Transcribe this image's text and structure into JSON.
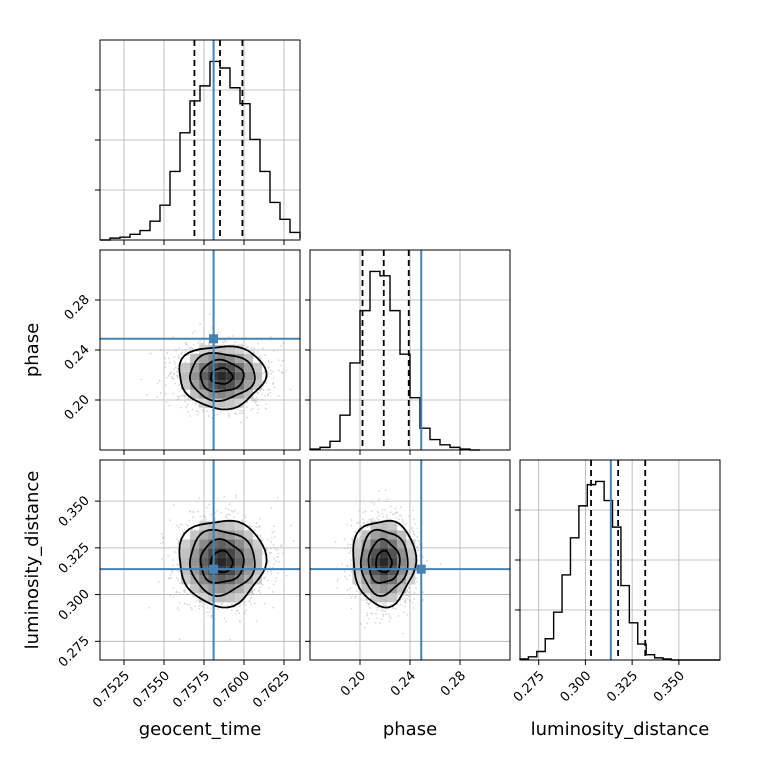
{
  "chart_data": {
    "type": "corner",
    "parameters": [
      "geocent_time",
      "phase",
      "luminosity_distance"
    ],
    "truth_color": "#4682b4",
    "hist_color": "#000000",
    "truths": {
      "geocent_time": 0.7581,
      "phase": 0.249,
      "luminosity_distance": 0.3136
    },
    "quantiles": {
      "geocent_time": [
        0.7569,
        0.7585,
        0.7599
      ],
      "phase": [
        0.202,
        0.219,
        0.239
      ],
      "luminosity_distance": [
        0.303,
        0.3175,
        0.332
      ]
    },
    "ranges": {
      "geocent_time": [
        0.751,
        0.7635
      ],
      "phase": [
        0.16,
        0.32
      ],
      "luminosity_distance": [
        0.265,
        0.372
      ]
    },
    "ticks": {
      "geocent_time": {
        "values": [
          0.7525,
          0.755,
          0.7575,
          0.76,
          0.7625
        ],
        "labels": [
          "0.7525",
          "0.7550",
          "0.7575",
          "0.7600",
          "0.7625"
        ]
      },
      "phase": {
        "values": [
          0.2,
          0.24,
          0.28
        ],
        "labels": [
          "0.20",
          "0.24",
          "0.28"
        ]
      },
      "luminosity_distance": {
        "values": [
          0.275,
          0.3,
          0.325,
          0.35
        ],
        "labels": [
          "0.275",
          "0.300",
          "0.325",
          "0.350"
        ]
      }
    },
    "histograms": {
      "geocent_time": {
        "bin_start": 0.751,
        "bin_width": 0.000625,
        "counts": [
          0,
          2,
          3,
          6,
          10,
          20,
          37,
          73,
          114,
          148,
          164,
          190,
          183,
          162,
          145,
          107,
          73,
          40,
          22,
          8,
          2
        ]
      },
      "phase": {
        "bin_start": 0.16,
        "bin_width": 0.008,
        "counts": [
          1,
          3,
          10,
          40,
          100,
          160,
          205,
          200,
          160,
          110,
          60,
          25,
          12,
          6,
          3,
          1,
          0
        ]
      },
      "luminosity_distance": {
        "bin_start": 0.265,
        "bin_width": 0.0045,
        "counts": [
          1,
          3,
          8,
          20,
          45,
          80,
          115,
          145,
          165,
          168,
          150,
          125,
          70,
          35,
          15,
          5,
          2,
          1,
          0,
          0,
          0,
          0,
          0,
          0
        ]
      }
    },
    "joint_distributions": [
      {
        "x": "geocent_time",
        "y": "phase",
        "center": [
          0.7586,
          0.219
        ],
        "sigma": [
          0.00135,
          0.0125
        ]
      },
      {
        "x": "geocent_time",
        "y": "luminosity_distance",
        "center": [
          0.7586,
          0.3175
        ],
        "sigma": [
          0.00135,
          0.0115
        ]
      },
      {
        "x": "phase",
        "y": "luminosity_distance",
        "center": [
          0.219,
          0.3175
        ],
        "sigma": [
          0.0125,
          0.0115
        ]
      }
    ],
    "grid": true
  }
}
